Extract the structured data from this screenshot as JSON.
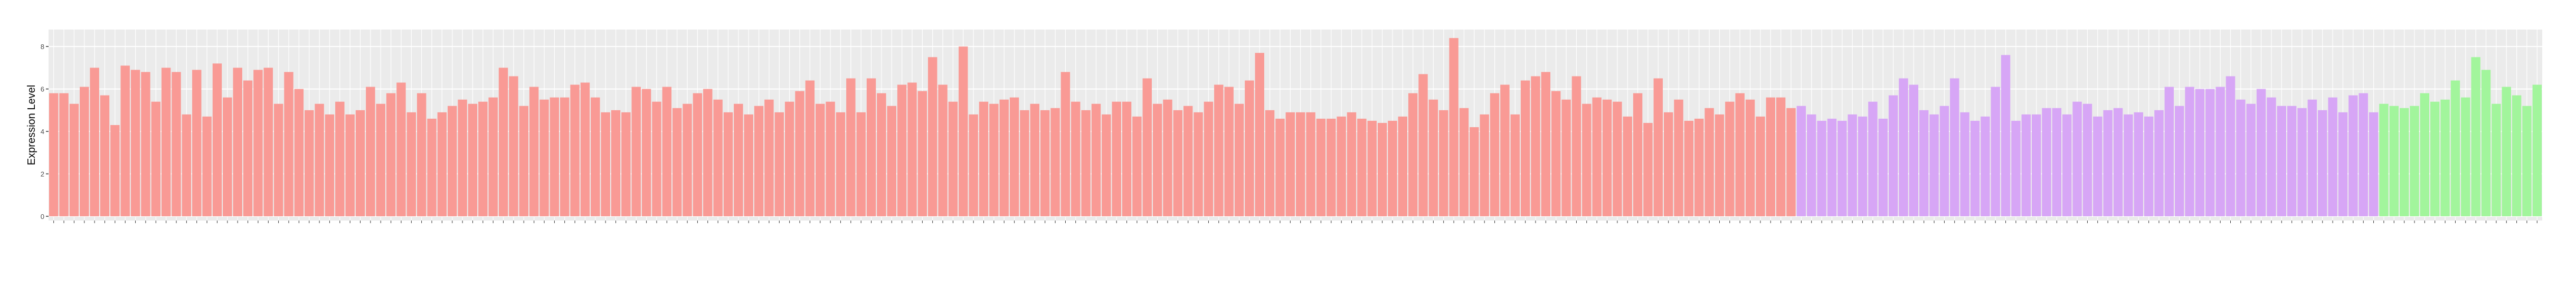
{
  "chart_data": {
    "type": "bar",
    "y_label": "Expression Level",
    "ylim": [
      -0.2,
      8.8
    ],
    "yticks": [
      0,
      2,
      4,
      6,
      8
    ],
    "grid": true,
    "series": [
      {
        "color": "#f99a95",
        "values": [
          5.8,
          5.8,
          5.3,
          6.1,
          7.0,
          5.7,
          4.3,
          7.1,
          6.9,
          6.8,
          5.4,
          7.0,
          6.8,
          4.8,
          6.9,
          4.7,
          7.2,
          5.6,
          7.0,
          6.4,
          6.9,
          7.0,
          5.3,
          6.8,
          6.0,
          5.0,
          5.3,
          4.8,
          5.4,
          4.8,
          5.0,
          6.1,
          5.3,
          5.8,
          6.3,
          4.9,
          5.8,
          4.6,
          4.9,
          5.2,
          5.5,
          5.3,
          5.4,
          5.6,
          7.0,
          6.6,
          5.2,
          6.1,
          5.5,
          5.6,
          5.6,
          6.2,
          6.3,
          5.6,
          4.9,
          5.0,
          4.9,
          6.1,
          6.0,
          5.4,
          6.1,
          5.1,
          5.3,
          5.8,
          6.0,
          5.5,
          4.9,
          5.3,
          4.8,
          5.2,
          5.5,
          4.9,
          5.4,
          5.9,
          6.4,
          5.3,
          5.4,
          4.9,
          6.5,
          4.9,
          6.5,
          5.8,
          5.2,
          6.2,
          6.3,
          5.9,
          7.5,
          6.2,
          5.4,
          8.0,
          4.8,
          5.4,
          5.3,
          5.5,
          5.6,
          5.0,
          5.3,
          5.0,
          5.1,
          6.8,
          5.4,
          5.0,
          5.3,
          4.8,
          5.4,
          5.4,
          4.7,
          6.5,
          5.3,
          5.5,
          5.0,
          5.2,
          4.9,
          5.4,
          6.2,
          6.1,
          5.3,
          6.4,
          7.7,
          5.0,
          4.6,
          4.9,
          4.9,
          4.9,
          4.6,
          4.6,
          4.7,
          4.9,
          4.6,
          4.5,
          4.4,
          4.5,
          4.7,
          5.8,
          6.7,
          5.5,
          5.0,
          8.4,
          5.1,
          4.2,
          4.8,
          5.8,
          6.2,
          4.8,
          6.4,
          6.6,
          6.8,
          5.9,
          5.5,
          6.6,
          5.3,
          5.6,
          5.5,
          5.4,
          4.7,
          5.8,
          4.4,
          6.5,
          4.9,
          5.5,
          4.5,
          4.6,
          5.1,
          4.8,
          5.4,
          5.8,
          5.5,
          4.7,
          5.6,
          5.6,
          5.1
        ]
      },
      {
        "color": "#d7a6f6",
        "values": [
          5.2,
          4.8,
          4.5,
          4.6,
          4.5,
          4.8,
          4.7,
          5.4,
          4.6,
          5.7,
          6.5,
          6.2,
          5.0,
          4.8,
          5.2,
          6.5,
          4.9,
          4.5,
          4.7,
          6.1,
          7.6,
          4.5,
          4.8,
          4.8,
          5.1,
          5.1,
          4.8,
          5.4,
          5.3,
          4.7,
          5.0,
          5.1,
          4.8,
          4.9,
          4.7,
          5.0,
          6.1,
          5.2,
          6.1,
          6.0,
          6.0,
          6.1,
          6.6,
          5.5,
          5.3,
          6.0,
          5.6,
          5.2,
          5.2,
          5.1,
          5.5,
          5.0,
          5.6,
          4.9,
          5.7,
          5.8,
          4.9
        ]
      },
      {
        "color": "#a2f59c",
        "values": [
          5.3,
          5.2,
          5.1,
          5.2,
          5.8,
          5.4,
          5.5,
          6.4,
          5.6,
          7.5,
          6.9,
          5.3,
          6.1,
          5.7,
          5.2,
          6.2
        ]
      }
    ]
  }
}
